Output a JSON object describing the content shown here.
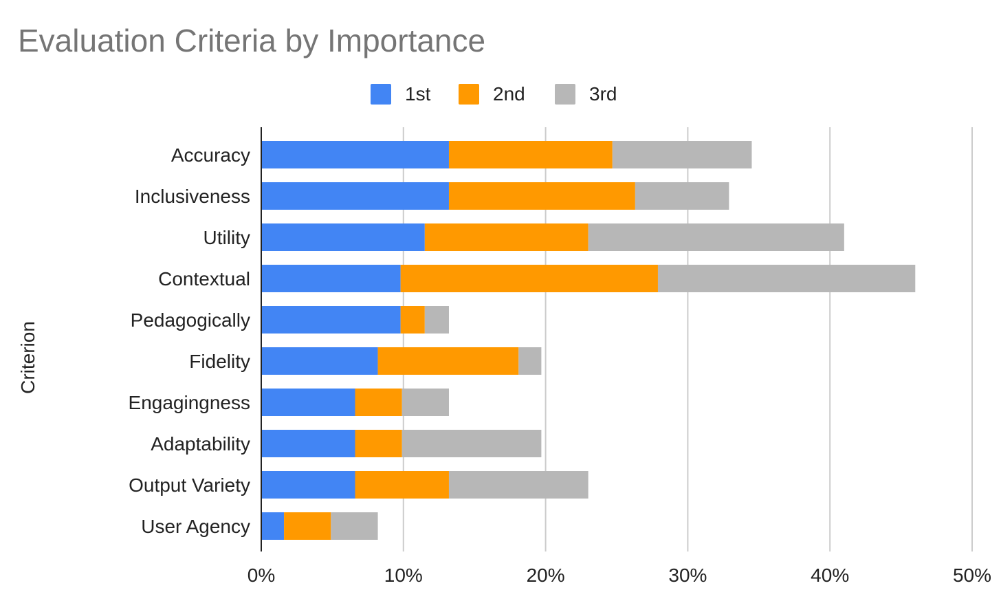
{
  "chart_data": {
    "type": "bar",
    "orientation": "horizontal",
    "stacked": true,
    "title": "Evaluation Criteria by Importance",
    "xlabel": "",
    "ylabel": "Criterion",
    "xlim": [
      0,
      50
    ],
    "x_ticks": [
      "0%",
      "10%",
      "20%",
      "30%",
      "40%",
      "50%"
    ],
    "x_tick_values": [
      0,
      10,
      20,
      30,
      40,
      50
    ],
    "grid": true,
    "legend_position": "top-center",
    "categories": [
      "Accuracy",
      "Inclusiveness",
      "Utility",
      "Contextual",
      "Pedagogically",
      "Fidelity",
      "Engagingness",
      "Adaptability",
      "Output Variety",
      "User Agency"
    ],
    "series": [
      {
        "name": "1st",
        "color": "#4285f4",
        "values": [
          13.2,
          13.2,
          11.5,
          9.8,
          9.8,
          8.2,
          6.6,
          6.6,
          6.6,
          1.6
        ]
      },
      {
        "name": "2nd",
        "color": "#ff9900",
        "values": [
          11.5,
          13.1,
          11.5,
          18.1,
          1.7,
          9.9,
          3.3,
          3.3,
          6.6,
          3.3
        ]
      },
      {
        "name": "3rd",
        "color": "#b7b7b7",
        "values": [
          9.8,
          6.6,
          18.0,
          18.1,
          1.7,
          1.6,
          3.3,
          9.8,
          9.8,
          3.3
        ]
      }
    ]
  }
}
